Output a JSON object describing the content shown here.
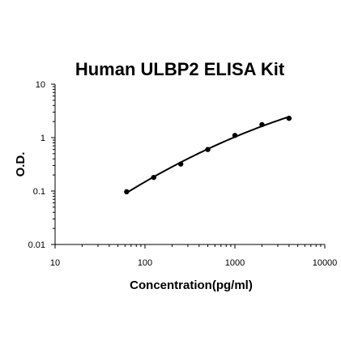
{
  "chart_data": {
    "type": "scatter",
    "title": "Human ULBP2 ELISA Kit",
    "xlabel": "Concentration(pg/ml)",
    "ylabel": "O.D.",
    "xscale": "log",
    "yscale": "log",
    "xlim": [
      10,
      10000
    ],
    "ylim": [
      0.01,
      10
    ],
    "x_ticks": [
      "10",
      "100",
      "1000",
      "10000"
    ],
    "y_ticks": [
      "10",
      "1",
      "0.1",
      "0.01"
    ],
    "grid": false,
    "legend": "none",
    "series": [
      {
        "x": [
          62.5,
          125,
          250,
          500,
          1000,
          2000,
          4000
        ],
        "y": [
          0.097,
          0.18,
          0.32,
          0.6,
          1.1,
          1.75,
          2.3
        ],
        "fit_curve": true
      }
    ]
  }
}
